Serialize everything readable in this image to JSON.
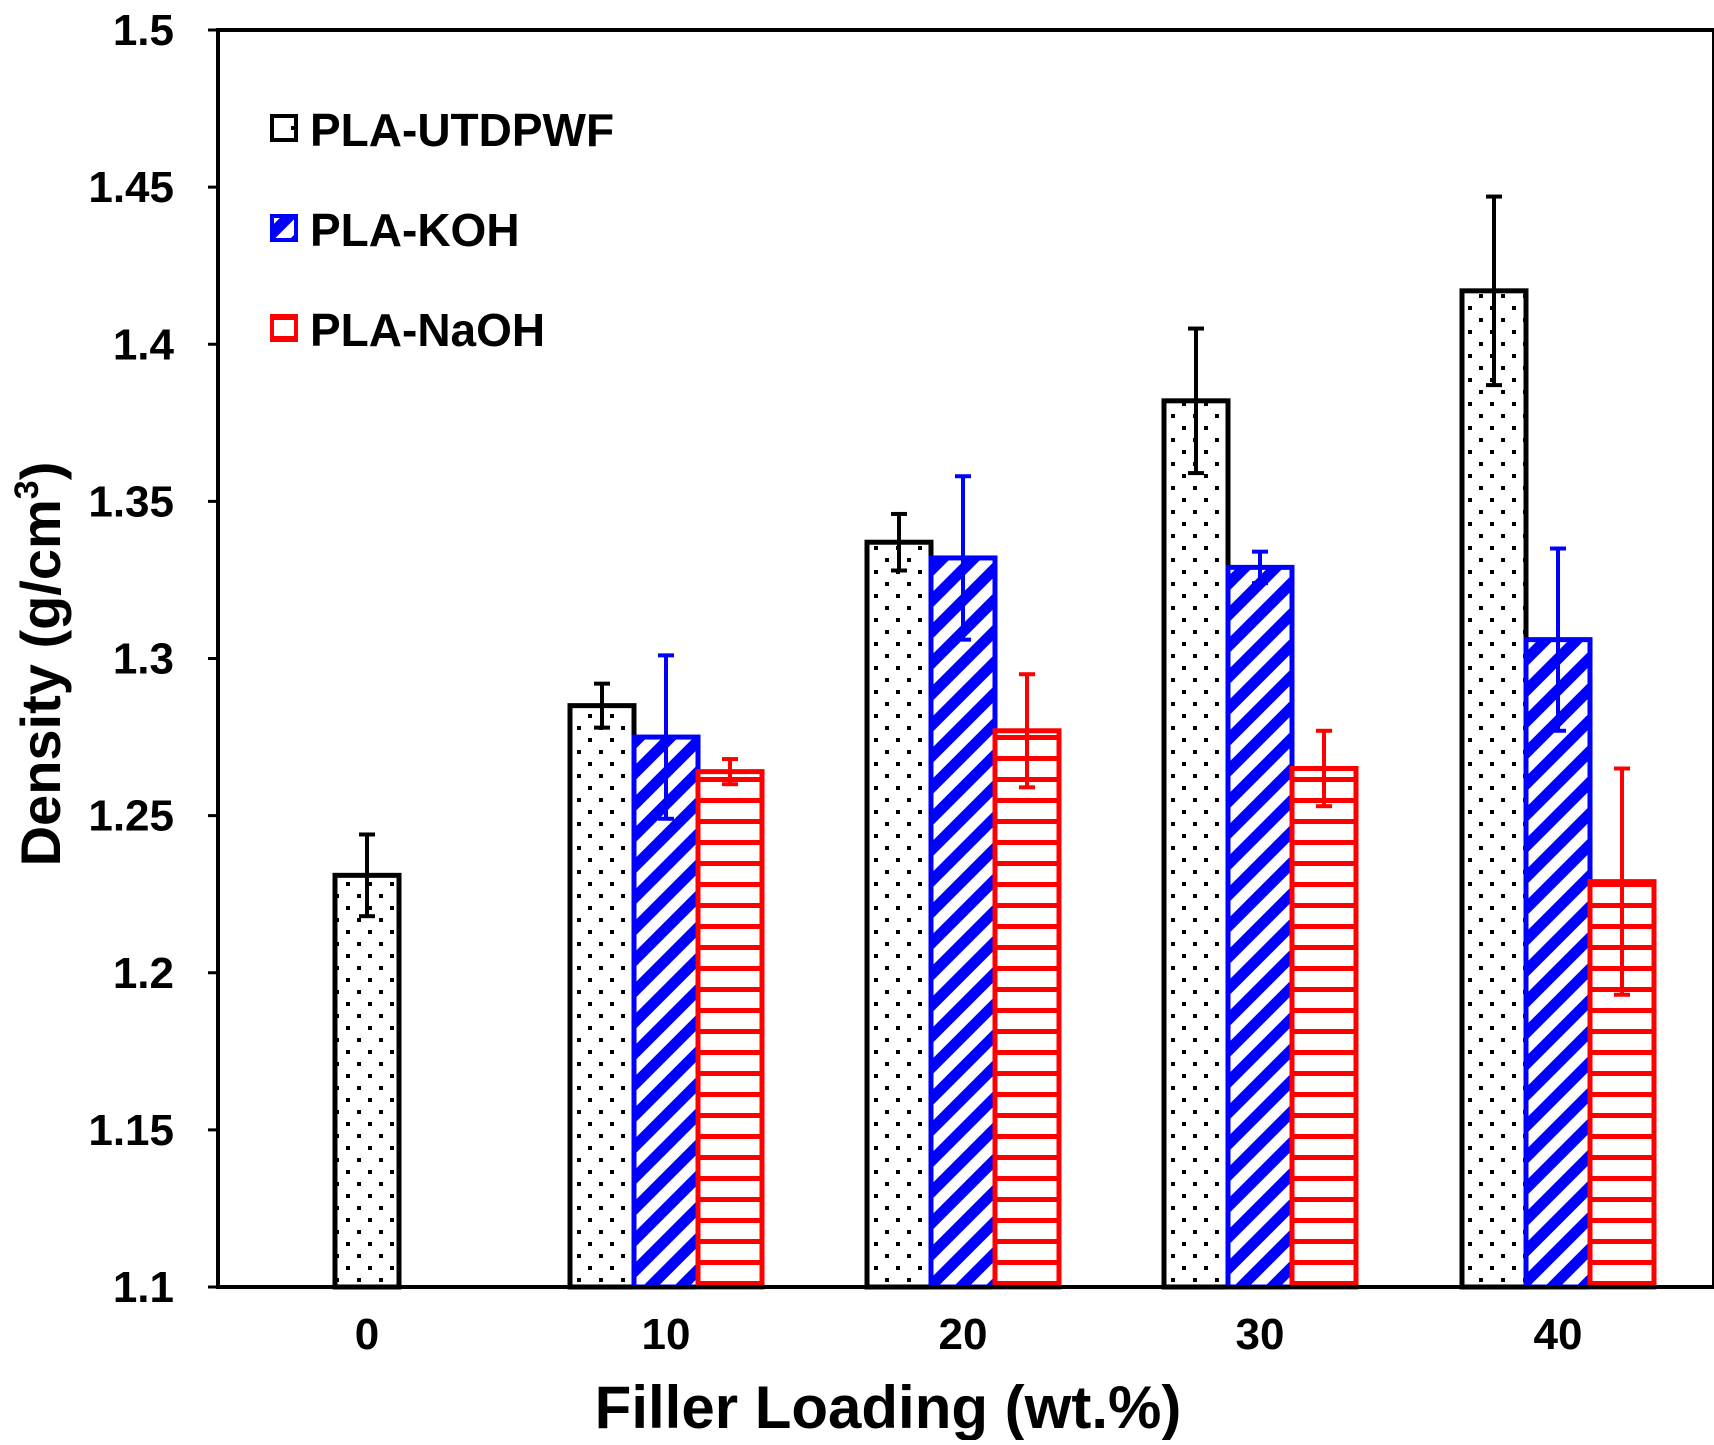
{
  "chart_data": {
    "type": "bar",
    "title": "",
    "xlabel": "Filler Loading (wt.%)",
    "ylabel_main": "Density (g/cm",
    "ylabel_sup": "3",
    "ylabel_close": ")",
    "ylim": [
      1.1,
      1.5
    ],
    "yticks": [
      1.1,
      1.15,
      1.2,
      1.25,
      1.3,
      1.35,
      1.4,
      1.45,
      1.5
    ],
    "ytick_labels": [
      "1.1",
      "1.15",
      "1.2",
      "1.25",
      "1.3",
      "1.35",
      "1.4",
      "1.45",
      "1.5"
    ],
    "categories": [
      "0",
      "10",
      "20",
      "30",
      "40"
    ],
    "grid": false,
    "legend_position": "top-left",
    "series": [
      {
        "name": "PLA-UTDPWF",
        "color": "#000000",
        "pattern": "dots",
        "values": [
          1.231,
          1.285,
          1.337,
          1.382,
          1.417
        ],
        "errors": [
          0.013,
          0.007,
          0.009,
          0.023,
          0.03
        ]
      },
      {
        "name": "PLA-KOH",
        "color": "#0000ff",
        "pattern": "diagonal",
        "values": [
          null,
          1.275,
          1.332,
          1.329,
          1.306
        ],
        "errors": [
          null,
          0.026,
          0.026,
          0.005,
          0.029
        ]
      },
      {
        "name": "PLA-NaOH",
        "color": "#ff0000",
        "pattern": "horizontal",
        "values": [
          null,
          1.264,
          1.277,
          1.265,
          1.229
        ],
        "errors": [
          null,
          0.004,
          0.018,
          0.012,
          0.036
        ]
      }
    ]
  }
}
